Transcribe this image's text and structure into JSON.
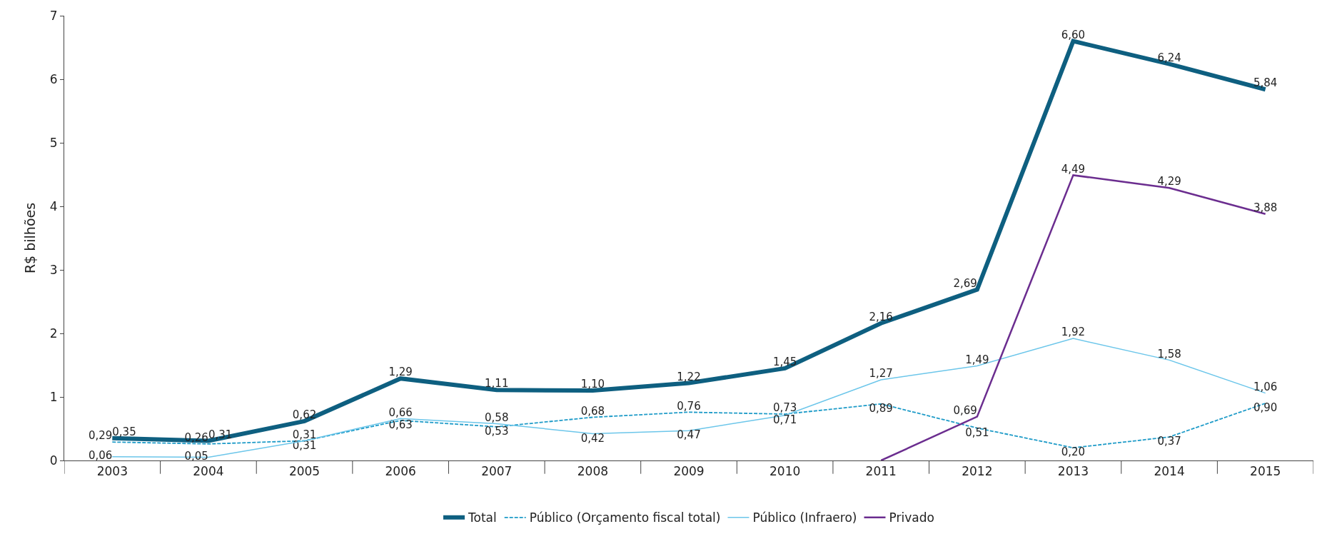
{
  "chart_data": {
    "type": "line",
    "ylabel": "R$ bilhões",
    "categories": [
      "2003",
      "2004",
      "2005",
      "2006",
      "2007",
      "2008",
      "2009",
      "2010",
      "2011",
      "2012",
      "2013",
      "2014",
      "2015"
    ],
    "ylim": [
      0,
      7
    ],
    "yticks": [
      0,
      1,
      2,
      3,
      4,
      5,
      6,
      7
    ],
    "legend": "bottom",
    "marker": "none",
    "series": [
      {
        "name": "Total",
        "color": "#0e5f80",
        "line_style": "solid",
        "values": [
          0.35,
          0.31,
          0.62,
          1.29,
          1.11,
          1.1,
          1.22,
          1.45,
          2.16,
          2.69,
          6.6,
          6.24,
          5.84
        ],
        "value_labels": [
          "0,35",
          "0,31",
          "0,62",
          "1,29",
          "1,11",
          "1,10",
          "1,22",
          "1,45",
          "2,16",
          "2,69",
          "6,60",
          "6,24",
          "5,84"
        ]
      },
      {
        "name": "Público (Orçamento fiscal total)",
        "color": "#1e9bc8",
        "line_style": "dashed",
        "values": [
          0.29,
          0.26,
          0.31,
          0.63,
          0.53,
          0.68,
          0.76,
          0.73,
          0.89,
          0.51,
          0.2,
          0.37,
          0.9
        ],
        "value_labels": [
          "0,29",
          "0,26",
          "0,31",
          "0,63",
          "0,53",
          "0,68",
          "0,76",
          "0,73",
          "0,89",
          "0,51",
          "0,20",
          "0,37",
          "0,90"
        ]
      },
      {
        "name": "Público (Infraero)",
        "color": "#6cc6ea",
        "line_style": "solid",
        "values": [
          0.06,
          0.05,
          0.31,
          0.66,
          0.58,
          0.42,
          0.47,
          0.71,
          1.27,
          1.49,
          1.92,
          1.58,
          1.06
        ],
        "value_labels": [
          "0,06",
          "0,05",
          "0,31",
          "0,66",
          "0,58",
          "0,42",
          "0,47",
          "0,71",
          "1,27",
          "1,49",
          "1,92",
          "1,58",
          "1,06"
        ]
      },
      {
        "name": "Privado",
        "color": "#6b2d8f",
        "line_style": "solid",
        "values": [
          null,
          null,
          null,
          null,
          null,
          null,
          null,
          null,
          0,
          0.69,
          4.49,
          4.29,
          3.88
        ],
        "value_labels": [
          null,
          null,
          null,
          null,
          null,
          null,
          null,
          null,
          null,
          "0,69",
          "4,49",
          "4,29",
          "3,88"
        ]
      }
    ]
  }
}
